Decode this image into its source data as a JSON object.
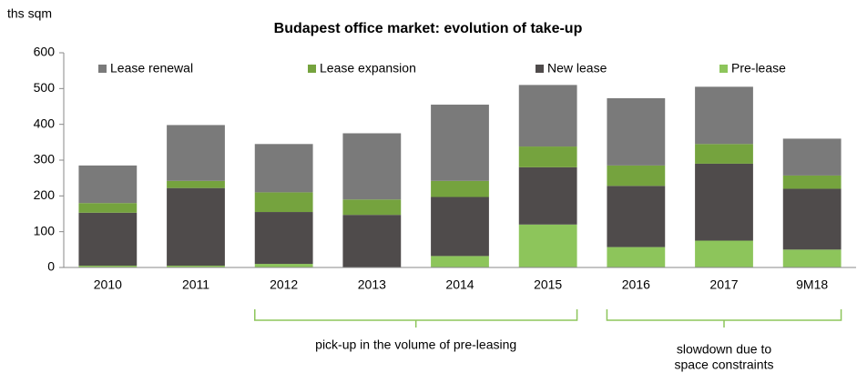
{
  "chart_data": {
    "type": "stacked_bar",
    "title": "Budapest office market: evolution of take-up",
    "y_label": "ths sqm",
    "categories": [
      "2010",
      "2011",
      "2012",
      "2013",
      "2014",
      "2015",
      "2016",
      "2017",
      "9M18"
    ],
    "series": [
      {
        "name": "Lease renewal",
        "color": "#7a7a7a",
        "values": [
          105,
          156,
          135,
          185,
          213,
          172,
          188,
          160,
          103
        ]
      },
      {
        "name": "Lease expansion",
        "color": "#75a33e",
        "values": [
          27,
          20,
          55,
          43,
          45,
          58,
          57,
          55,
          37
        ]
      },
      {
        "name": "New lease",
        "color": "#4f4b4b",
        "values": [
          148,
          217,
          145,
          147,
          165,
          160,
          171,
          215,
          170
        ]
      },
      {
        "name": "Pre-lease",
        "color": "#8dc55b",
        "values": [
          5,
          5,
          10,
          0,
          32,
          120,
          57,
          75,
          50
        ]
      }
    ],
    "ylim": [
      0,
      600
    ],
    "yticks": [
      0,
      100,
      200,
      300,
      400,
      500,
      600
    ],
    "legend": "top",
    "annotations": [
      {
        "text": [
          "pick-up in the volume of pre-leasing"
        ]
      },
      {
        "text": [
          "slowdown due to",
          "space constraints"
        ]
      }
    ]
  }
}
